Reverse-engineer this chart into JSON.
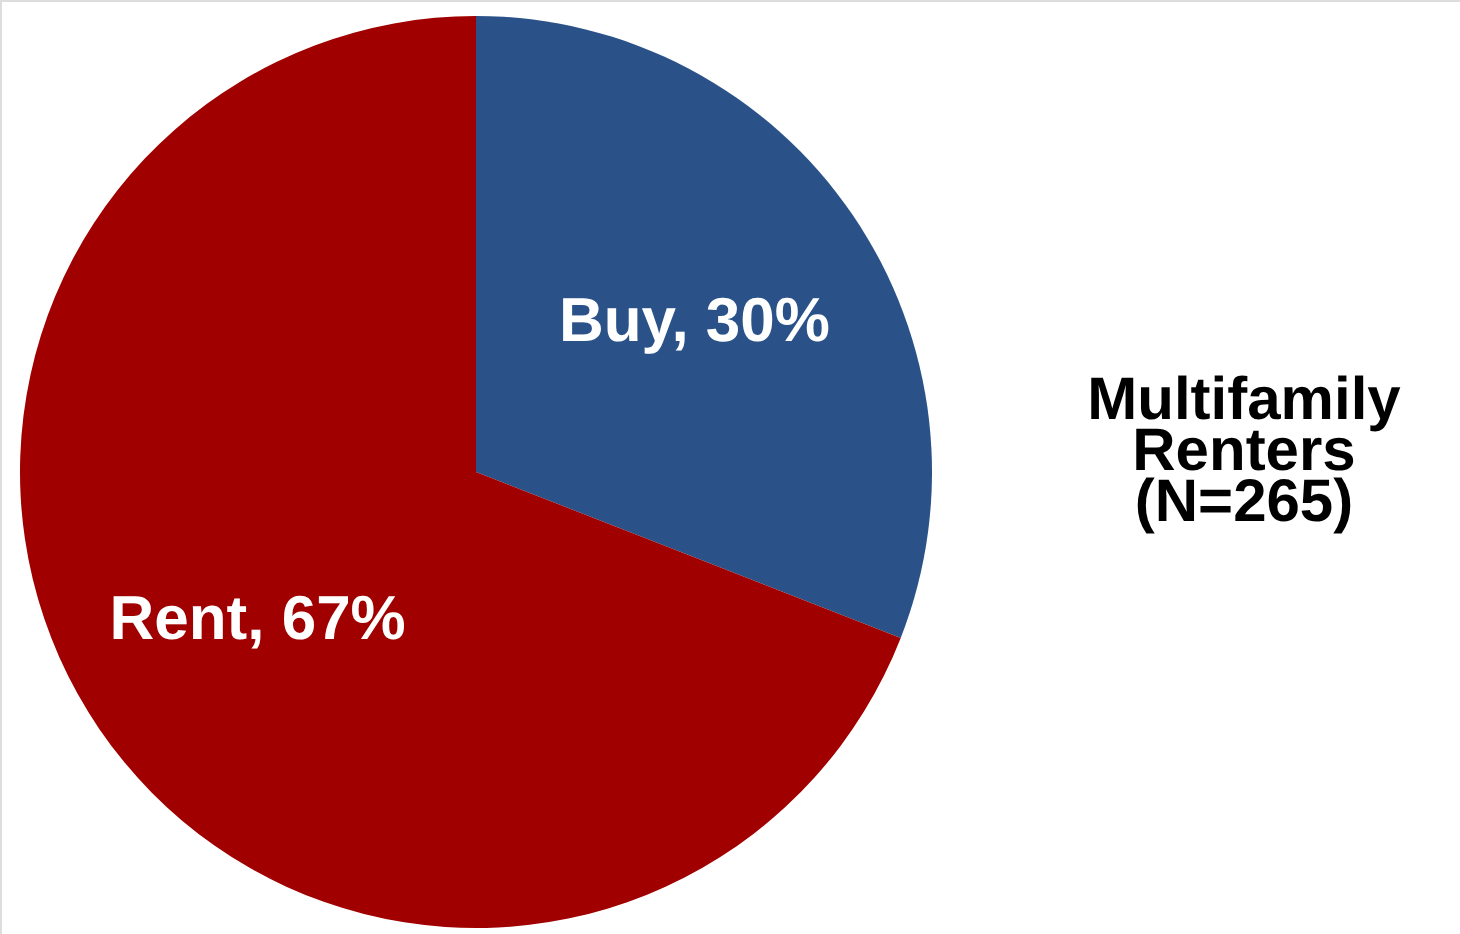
{
  "chart_data": {
    "type": "pie",
    "title": "Multifamily Renters (N=265)",
    "categories": [
      "Buy",
      "Rent"
    ],
    "values": [
      30,
      67
    ],
    "colors": [
      "#2a5289",
      "#a00000"
    ],
    "value_labels": [
      "30%",
      "67%"
    ]
  }
}
